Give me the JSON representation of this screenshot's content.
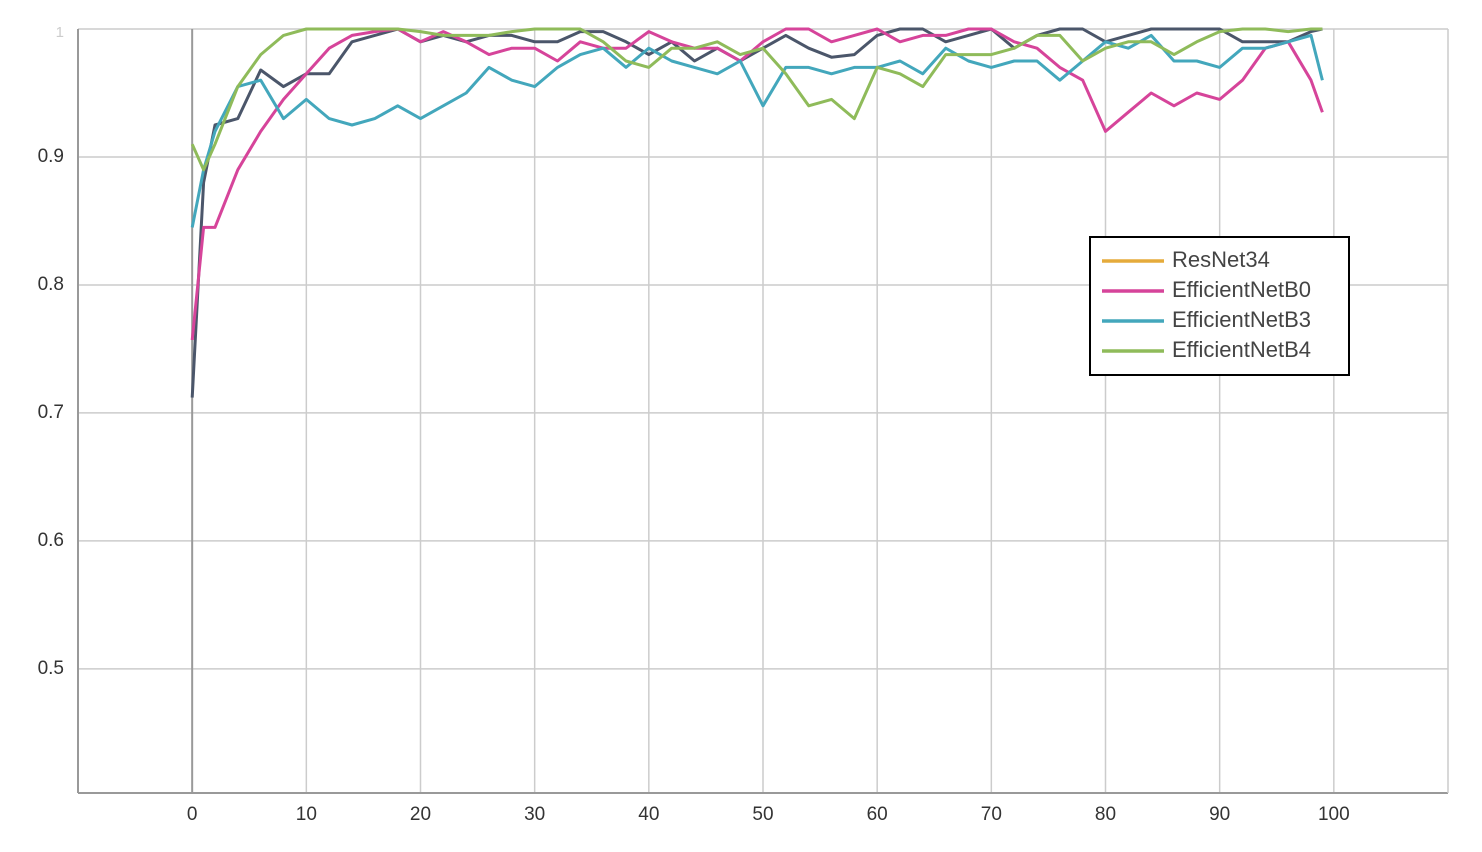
{
  "chart_data": {
    "type": "line",
    "x": [
      0,
      1,
      2,
      4,
      6,
      8,
      10,
      12,
      14,
      16,
      18,
      20,
      22,
      24,
      26,
      28,
      30,
      32,
      34,
      36,
      38,
      40,
      42,
      44,
      46,
      48,
      50,
      52,
      54,
      56,
      58,
      60,
      62,
      64,
      66,
      68,
      70,
      72,
      74,
      76,
      78,
      80,
      82,
      84,
      86,
      88,
      90,
      92,
      94,
      96,
      98,
      99
    ],
    "series": [
      {
        "name": "ResNet34",
        "color": "#4b566a",
        "legend_color": "#e5ab3b",
        "values": [
          0.712,
          0.88,
          0.925,
          0.93,
          0.968,
          0.955,
          0.965,
          0.965,
          0.99,
          0.995,
          1.0,
          0.99,
          0.995,
          0.99,
          0.995,
          0.995,
          0.99,
          0.99,
          0.998,
          0.998,
          0.99,
          0.98,
          0.99,
          0.975,
          0.985,
          0.975,
          0.985,
          0.995,
          0.985,
          0.978,
          0.98,
          0.995,
          1.0,
          1.0,
          0.99,
          0.995,
          1.0,
          0.985,
          0.995,
          1.0,
          1.0,
          0.99,
          0.995,
          1.0,
          1.0,
          1.0,
          1.0,
          0.99,
          0.99,
          0.99,
          0.998,
          1.0
        ]
      },
      {
        "name": "EfficientNetB0",
        "color": "#d6449a",
        "legend_color": "#d6449a",
        "values": [
          0.757,
          0.845,
          0.845,
          0.89,
          0.92,
          0.945,
          0.965,
          0.985,
          0.995,
          0.998,
          1.0,
          0.99,
          0.998,
          0.99,
          0.98,
          0.985,
          0.985,
          0.975,
          0.99,
          0.985,
          0.985,
          0.998,
          0.99,
          0.985,
          0.985,
          0.975,
          0.99,
          1.0,
          1.0,
          0.99,
          0.995,
          1.0,
          0.99,
          0.995,
          0.995,
          1.0,
          1.0,
          0.99,
          0.985,
          0.97,
          0.96,
          0.92,
          0.935,
          0.95,
          0.94,
          0.95,
          0.945,
          0.96,
          0.985,
          0.99,
          0.96,
          0.935
        ]
      },
      {
        "name": "EfficientNetB3",
        "color": "#43a7bc",
        "legend_color": "#43a7bc",
        "values": [
          0.845,
          0.89,
          0.92,
          0.955,
          0.96,
          0.93,
          0.945,
          0.93,
          0.925,
          0.93,
          0.94,
          0.93,
          0.94,
          0.95,
          0.97,
          0.96,
          0.955,
          0.97,
          0.98,
          0.985,
          0.97,
          0.985,
          0.975,
          0.97,
          0.965,
          0.975,
          0.94,
          0.97,
          0.97,
          0.965,
          0.97,
          0.97,
          0.975,
          0.965,
          0.985,
          0.975,
          0.97,
          0.975,
          0.975,
          0.96,
          0.975,
          0.99,
          0.985,
          0.995,
          0.975,
          0.975,
          0.97,
          0.985,
          0.985,
          0.99,
          0.995,
          0.96
        ]
      },
      {
        "name": "EfficientNetB4",
        "color": "#8fbb5a",
        "legend_color": "#8fbb5a",
        "values": [
          0.91,
          0.89,
          0.91,
          0.955,
          0.98,
          0.995,
          1.0,
          1.0,
          1.0,
          1.0,
          1.0,
          0.998,
          0.995,
          0.995,
          0.995,
          0.998,
          1.0,
          1.0,
          1.0,
          0.99,
          0.975,
          0.97,
          0.985,
          0.985,
          0.99,
          0.98,
          0.985,
          0.965,
          0.94,
          0.945,
          0.93,
          0.97,
          0.965,
          0.955,
          0.98,
          0.98,
          0.98,
          0.985,
          0.995,
          0.995,
          0.975,
          0.985,
          0.99,
          0.99,
          0.98,
          0.99,
          0.998,
          1.0,
          1.0,
          0.998,
          1.0,
          1.0
        ]
      }
    ],
    "xlim": [
      -10,
      110
    ],
    "xticks": [
      0,
      10,
      20,
      30,
      40,
      50,
      60,
      70,
      80,
      90,
      100
    ],
    "ylim": [
      0.403,
      1.0
    ],
    "yticks": [
      0.5,
      0.6,
      0.7,
      0.8,
      0.9,
      1
    ],
    "grid": true,
    "legend_position": "right"
  }
}
